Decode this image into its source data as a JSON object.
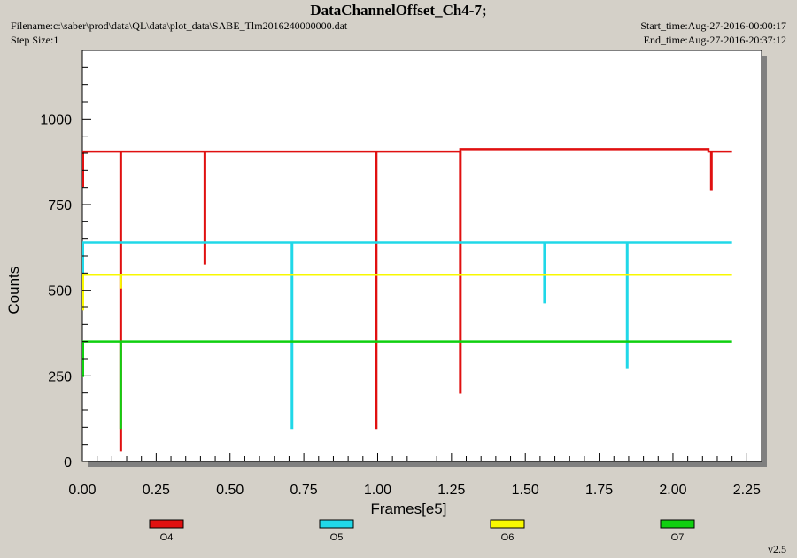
{
  "header": {
    "title": "DataChannelOffset_Ch4-7;",
    "filename": "Filename:c:\\saber\\prod\\data\\QL\\data\\plot_data\\SABE_Tlm2016240000000.dat",
    "step_size": "Step Size:1",
    "start_time": "Start_time:Aug-27-2016-00:00:17",
    "end_time": "End_time:Aug-27-2016-20:37:12"
  },
  "footer": {
    "version": "v2.5"
  },
  "chart_data": {
    "type": "line",
    "title": "DataChannelOffset_Ch4-7;",
    "xlabel": "Frames[e5]",
    "ylabel": "Counts",
    "xlim": [
      0,
      2.3
    ],
    "ylim": [
      0,
      1200
    ],
    "xticks": [
      0.0,
      0.25,
      0.5,
      0.75,
      1.0,
      1.25,
      1.5,
      1.75,
      2.0,
      2.25
    ],
    "xtick_labels": [
      "0.00",
      "0.25",
      "0.50",
      "0.75",
      "1.00",
      "1.25",
      "1.50",
      "1.75",
      "2.00",
      "2.25"
    ],
    "yticks": [
      0,
      250,
      500,
      750,
      1000
    ],
    "ytick_labels": [
      "0",
      "250",
      "500",
      "750",
      "1000"
    ],
    "grid": false,
    "legend_position": "bottom",
    "series": [
      {
        "name": "O4",
        "color": "#e01010",
        "baseline": 905,
        "segments": [
          [
            0,
            905
          ],
          [
            1.28,
            905
          ],
          [
            1.28,
            912
          ],
          [
            2.12,
            912
          ],
          [
            2.12,
            905
          ],
          [
            2.2,
            905
          ]
        ],
        "spikes": [
          [
            0.13,
            30
          ],
          [
            0.415,
            575
          ],
          [
            0.995,
            95
          ],
          [
            1.28,
            198
          ],
          [
            2.13,
            790
          ]
        ]
      },
      {
        "name": "O5",
        "color": "#20d8e8",
        "baseline": 640,
        "segments": [
          [
            0,
            640
          ],
          [
            2.2,
            640
          ]
        ],
        "spikes": [
          [
            0.71,
            95
          ],
          [
            1.565,
            462
          ],
          [
            1.845,
            270
          ]
        ]
      },
      {
        "name": "O6",
        "color": "#f8f800",
        "baseline": 545,
        "segments": [
          [
            0,
            545
          ],
          [
            2.2,
            545
          ]
        ],
        "spikes": [
          [
            0.13,
            505
          ]
        ]
      },
      {
        "name": "O7",
        "color": "#10d010",
        "baseline": 350,
        "segments": [
          [
            0,
            350
          ],
          [
            2.2,
            350
          ]
        ],
        "spikes": [
          [
            0.13,
            95
          ]
        ]
      }
    ]
  }
}
